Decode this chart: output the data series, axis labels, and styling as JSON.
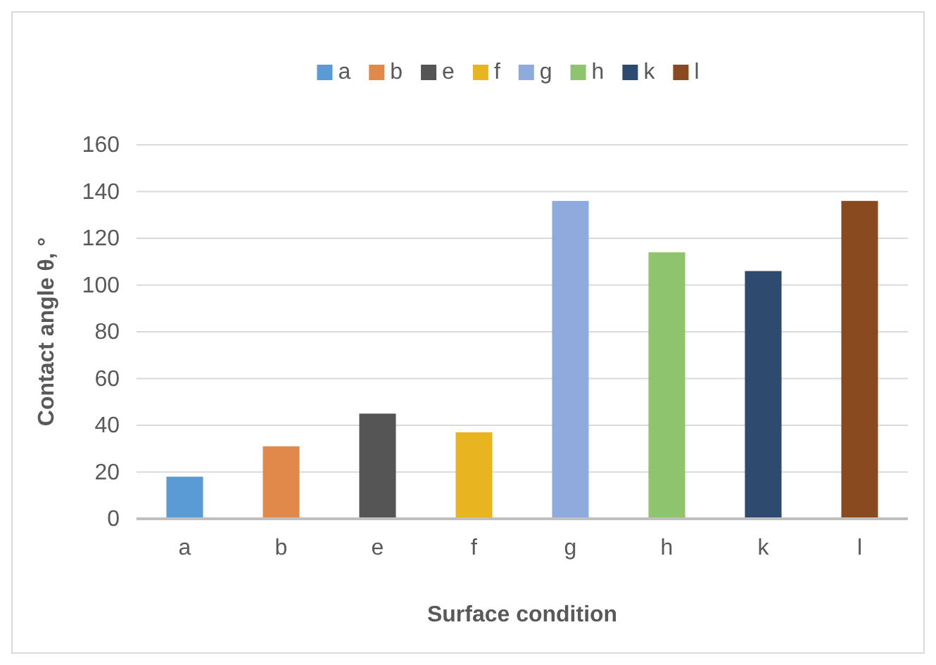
{
  "chart_data": {
    "type": "bar",
    "xlabel": "Surface condition",
    "ylabel": "Contact angle θ, °",
    "categories": [
      "a",
      "b",
      "e",
      "f",
      "g",
      "h",
      "k",
      "l"
    ],
    "stacked": true,
    "series": [
      {
        "name": "a",
        "color": "#5b9bd5",
        "values": [
          18,
          null,
          null,
          null,
          null,
          null,
          null,
          null
        ]
      },
      {
        "name": "b",
        "color": "#e0894a",
        "values": [
          null,
          31,
          null,
          null,
          null,
          null,
          null,
          null
        ]
      },
      {
        "name": "e",
        "color": "#555555",
        "values": [
          null,
          null,
          45,
          null,
          null,
          null,
          null,
          null
        ]
      },
      {
        "name": "f",
        "color": "#e8b520",
        "values": [
          null,
          null,
          null,
          37,
          null,
          null,
          null,
          null
        ]
      },
      {
        "name": "g",
        "color": "#8faadc",
        "values": [
          null,
          null,
          null,
          null,
          136,
          null,
          null,
          null
        ]
      },
      {
        "name": "h",
        "color": "#8fc46e",
        "values": [
          null,
          null,
          null,
          null,
          null,
          114,
          null,
          null
        ]
      },
      {
        "name": "k",
        "color": "#2e4a6e",
        "values": [
          null,
          null,
          null,
          null,
          null,
          null,
          106,
          null
        ]
      },
      {
        "name": "l",
        "color": "#8a4a20",
        "values": [
          null,
          null,
          null,
          null,
          null,
          null,
          null,
          136
        ]
      }
    ],
    "ylim": [
      0,
      160
    ],
    "yticks": [
      0,
      20,
      40,
      60,
      80,
      100,
      120,
      140,
      160
    ],
    "grid": "y",
    "legend": "top"
  }
}
